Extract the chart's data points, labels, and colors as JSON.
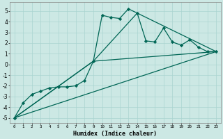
{
  "xlabel": "Humidex (Indice chaleur)",
  "background_color": "#cce8e4",
  "grid_color": "#aad4d0",
  "line_color": "#006655",
  "x_ticks": [
    0,
    1,
    2,
    3,
    4,
    5,
    6,
    7,
    8,
    9,
    10,
    11,
    12,
    13,
    14,
    15,
    16,
    17,
    18,
    19,
    20,
    21,
    22,
    23
  ],
  "y_ticks": [
    -5,
    -4,
    -3,
    -2,
    -1,
    0,
    1,
    2,
    3,
    4,
    5
  ],
  "xlim": [
    -0.5,
    23.5
  ],
  "ylim": [
    -5.5,
    5.8
  ],
  "series": [
    {
      "x": [
        0,
        1,
        2,
        3,
        4,
        5,
        6,
        7,
        8,
        9,
        10,
        11,
        12,
        13,
        14,
        15,
        16,
        17,
        18,
        19,
        20,
        21,
        22,
        23
      ],
      "y": [
        -5.0,
        -3.6,
        -2.8,
        -2.5,
        -2.2,
        -2.1,
        -2.1,
        -2.0,
        -1.5,
        0.3,
        4.6,
        4.4,
        4.3,
        5.2,
        4.8,
        2.2,
        2.1,
        3.4,
        2.1,
        1.8,
        2.3,
        1.6,
        1.2,
        1.2
      ],
      "marker": "D",
      "markersize": 2.2,
      "linewidth": 0.9,
      "with_marker": true
    },
    {
      "x": [
        0,
        23
      ],
      "y": [
        -5.0,
        1.2
      ],
      "linewidth": 0.9,
      "with_marker": false
    },
    {
      "x": [
        0,
        9,
        23
      ],
      "y": [
        -5.0,
        0.3,
        1.2
      ],
      "linewidth": 0.9,
      "with_marker": false
    },
    {
      "x": [
        0,
        9,
        14,
        23
      ],
      "y": [
        -5.0,
        0.3,
        4.8,
        1.2
      ],
      "linewidth": 0.9,
      "with_marker": false
    }
  ]
}
